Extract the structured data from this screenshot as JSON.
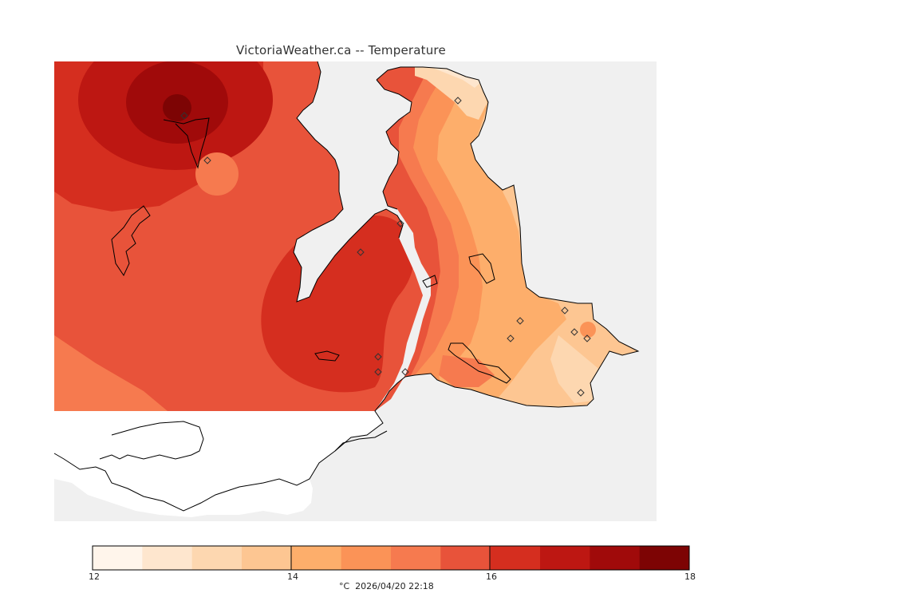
{
  "title": "VictoriaWeather.ca -- Temperature",
  "legend": {
    "ticks": [
      "12",
      "14",
      "16",
      "18"
    ],
    "units_and_time": "°C  2026/04/20 22:18",
    "colors": [
      "#fff5eb",
      "#fee6ce",
      "#fdd7b0",
      "#fdc692",
      "#fdae6b",
      "#fb9357",
      "#f67a4f",
      "#e8533a",
      "#d52e1f",
      "#bd1712",
      "#a00a0a",
      "#7d0404"
    ]
  },
  "map": {
    "land_color": "#f0f0f0",
    "water_color": "#ffffff",
    "station_icon": "diamond-marker"
  }
}
